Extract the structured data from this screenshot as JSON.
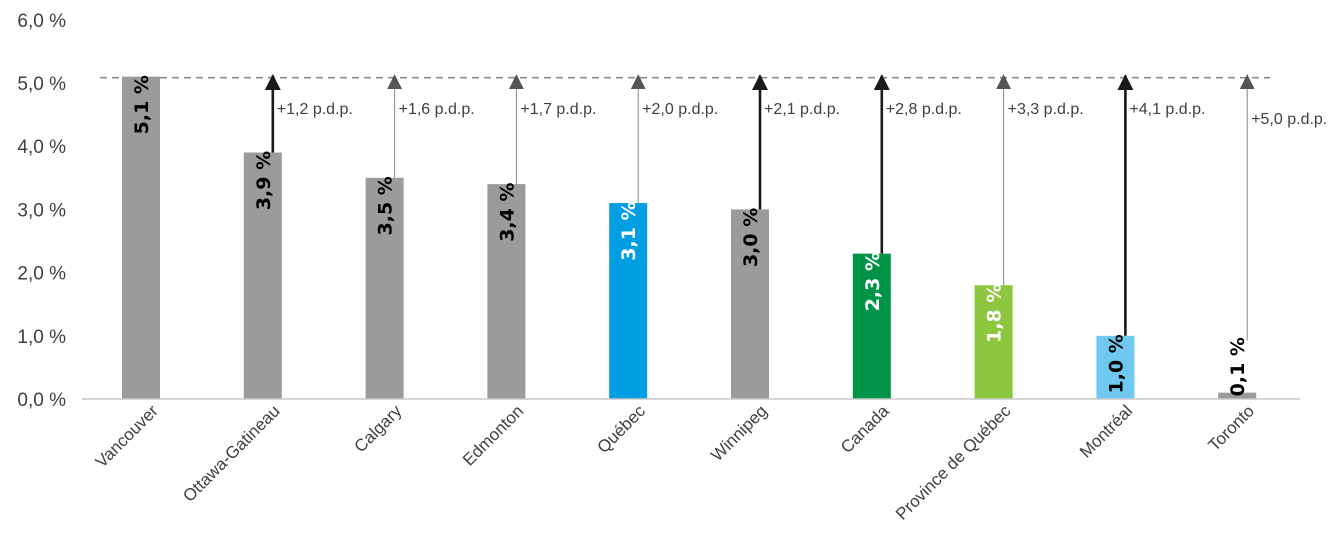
{
  "chart_data": {
    "type": "bar",
    "title": "",
    "xlabel": "",
    "ylabel": "",
    "ylim": [
      0,
      6
    ],
    "ytick_labels": [
      "0,0 %",
      "1,0 %",
      "2,0 %",
      "3,0 %",
      "4,0 %",
      "5,0 %",
      "6,0 %"
    ],
    "reference_line": {
      "value": 5.1,
      "style": "dashed",
      "color": "#8c8c8c"
    },
    "categories": [
      "Vancouver",
      "Ottawa-Gatineau",
      "Calgary",
      "Edmonton",
      "Québec",
      "Winnipeg",
      "Canada",
      "Province de Québec",
      "Montréal",
      "Toronto"
    ],
    "values": [
      5.1,
      3.9,
      3.5,
      3.4,
      3.1,
      3.0,
      2.3,
      1.8,
      1.0,
      0.1
    ],
    "value_labels": [
      "5,1 %",
      "3,9 %",
      "3,5 %",
      "3,4 %",
      "3,1 %",
      "3,0 %",
      "2,3 %",
      "1,8 %",
      "1,0 %",
      "0,1 %"
    ],
    "bar_colors": [
      "#9b9b9b",
      "#9b9b9b",
      "#9b9b9b",
      "#9b9b9b",
      "#009fe3",
      "#9b9b9b",
      "#009448",
      "#8dc63f",
      "#6ec8f0",
      "#9b9b9b"
    ],
    "value_label_colors": [
      "#000000",
      "#000000",
      "#000000",
      "#000000",
      "#ffffff",
      "#000000",
      "#ffffff",
      "#ffffff",
      "#000000",
      "#000000"
    ],
    "gap_labels": [
      "",
      "+1,2 p.d.p.",
      "+1,6 p.d.p.",
      "+1,7 p.d.p.",
      "+2,0 p.d.p.",
      "+2,1 p.d.p.",
      "+2,8 p.d.p.",
      "+3,3 p.d.p.",
      "+4,1 p.d.p.",
      "+5,0 p.d.p."
    ],
    "gap_arrow_style": [
      "none",
      "bold",
      "thin",
      "thin",
      "thin",
      "bold",
      "bold",
      "thin",
      "bold",
      "thin"
    ],
    "grid": false,
    "legend": "none"
  }
}
